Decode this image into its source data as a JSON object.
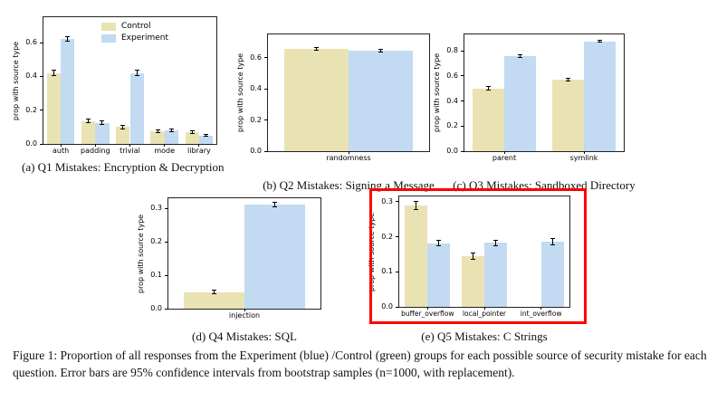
{
  "figure": {
    "caption": "Figure 1: Proportion of all responses from the Experiment (blue) /Control (green) groups for each possible source of security mistake for each question. Error bars are 95% confidence intervals from bootstrap samples (n=1000, with replacement)."
  },
  "legend": {
    "control_label": "Control",
    "experiment_label": "Experiment"
  },
  "colors": {
    "control": "#e9e3b3",
    "experiment": "#c2daf2",
    "highlight": "#ff0000",
    "axis": "#222222"
  },
  "chart_data": [
    {
      "id": "q1",
      "type": "bar",
      "subcaption": "(a) Q1 Mistakes: Encryption & Decryption",
      "ylabel": "prop with source type",
      "ylim": [
        0,
        0.75
      ],
      "yticks": [
        0.0,
        0.2,
        0.4,
        0.6
      ],
      "categories": [
        "auth",
        "padding",
        "trivial",
        "mode",
        "library"
      ],
      "series": [
        {
          "name": "Control",
          "values": [
            0.42,
            0.135,
            0.1,
            0.075,
            0.07
          ],
          "errors": [
            0.018,
            0.01,
            0.01,
            0.008,
            0.008
          ]
        },
        {
          "name": "Experiment",
          "values": [
            0.62,
            0.125,
            0.42,
            0.08,
            0.05
          ],
          "errors": [
            0.014,
            0.009,
            0.014,
            0.008,
            0.007
          ]
        }
      ],
      "legend_position": "upper center",
      "grid": false
    },
    {
      "id": "q2",
      "type": "bar",
      "subcaption": "(b) Q2 Mistakes: Signing a Message",
      "ylabel": "prop with source type",
      "ylim": [
        0,
        0.75
      ],
      "yticks": [
        0.0,
        0.2,
        0.4,
        0.6
      ],
      "categories": [
        "randomness"
      ],
      "series": [
        {
          "name": "Control",
          "values": [
            0.655
          ],
          "errors": [
            0.008
          ]
        },
        {
          "name": "Experiment",
          "values": [
            0.645
          ],
          "errors": [
            0.008
          ]
        }
      ],
      "grid": false
    },
    {
      "id": "q3",
      "type": "bar",
      "subcaption": "(c) Q3 Mistakes: Sandboxed Directory",
      "ylabel": "prop with source type",
      "ylim": [
        0,
        0.93
      ],
      "yticks": [
        0.0,
        0.2,
        0.4,
        0.6,
        0.8
      ],
      "categories": [
        "parent",
        "symlink"
      ],
      "series": [
        {
          "name": "Control",
          "values": [
            0.5,
            0.57
          ],
          "errors": [
            0.012,
            0.012
          ]
        },
        {
          "name": "Experiment",
          "values": [
            0.755,
            0.875
          ],
          "errors": [
            0.01,
            0.008
          ]
        }
      ],
      "grid": false
    },
    {
      "id": "q4",
      "type": "bar",
      "subcaption": "(d) Q4 Mistakes: SQL",
      "ylabel": "prop with source type",
      "ylim": [
        0,
        0.33
      ],
      "yticks": [
        0.0,
        0.1,
        0.2,
        0.3
      ],
      "categories": [
        "injection"
      ],
      "series": [
        {
          "name": "Control",
          "values": [
            0.05
          ],
          "errors": [
            0.006
          ]
        },
        {
          "name": "Experiment",
          "values": [
            0.31
          ],
          "errors": [
            0.007
          ]
        }
      ],
      "grid": false
    },
    {
      "id": "q5",
      "type": "bar",
      "subcaption": "(e) Q5 Mistakes: C Strings",
      "ylabel": "prop with source type",
      "ylim": [
        0,
        0.315
      ],
      "yticks": [
        0.0,
        0.1,
        0.2,
        0.3
      ],
      "categories": [
        "buffer_overflow",
        "local_pointer",
        "int_overflow"
      ],
      "series": [
        {
          "name": "Control",
          "values": [
            0.29,
            0.145,
            0
          ],
          "errors": [
            0.012,
            0.009,
            0
          ]
        },
        {
          "name": "Experiment",
          "values": [
            0.182,
            0.183,
            0.186
          ],
          "errors": [
            0.008,
            0.008,
            0.008
          ]
        }
      ],
      "highlighted": true,
      "grid": false
    }
  ]
}
